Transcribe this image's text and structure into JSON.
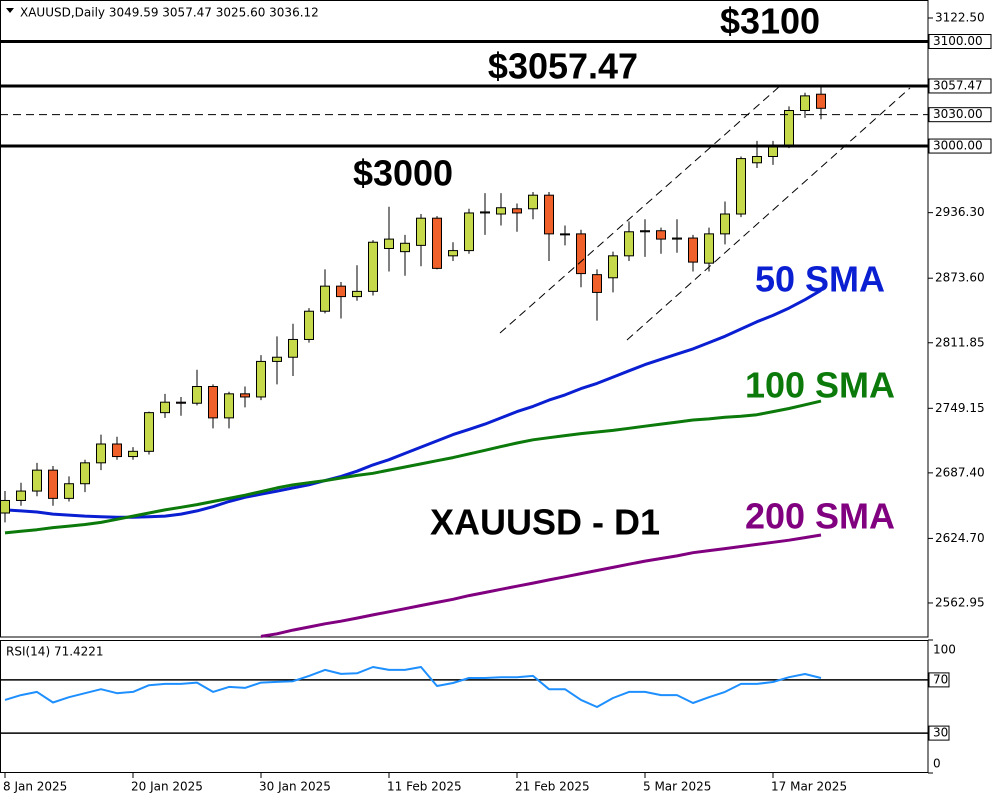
{
  "chart_data": [
    {
      "type": "candlestick",
      "subtitle": "XAUUSD,Daily  3049.59 3057.47 3025.60 3036.12",
      "title": "XAUUSD - D1",
      "categories": [
        "8 Jan 2025",
        null,
        null,
        null,
        null,
        null,
        null,
        null,
        "20 Jan 2025",
        null,
        null,
        null,
        null,
        null,
        null,
        null,
        "30 Jan 2025",
        null,
        null,
        null,
        null,
        null,
        null,
        null,
        "11 Feb 2025",
        null,
        null,
        null,
        null,
        null,
        null,
        null,
        "21 Feb 2025",
        null,
        null,
        null,
        null,
        null,
        null,
        null,
        "5 Mar 2025",
        null,
        null,
        null,
        null,
        null,
        null,
        null,
        "17 Mar 2025",
        null,
        null,
        null
      ],
      "open": [
        2649,
        2661,
        2670,
        2690,
        2663,
        2677,
        2697,
        2715,
        2703,
        2708,
        2745,
        2755,
        2754,
        2770,
        2740,
        2763,
        2760,
        2794,
        2798,
        2815,
        2842,
        2866,
        2856,
        2861,
        2902,
        2899,
        2905,
        2931,
        2895,
        2900,
        2936,
        2935,
        2940,
        2940,
        2953,
        2916,
        2916,
        2877,
        2874,
        2895,
        2918,
        2919,
        2911,
        2912,
        2888,
        2916,
        2935,
        2984,
        2990,
        3001,
        3034,
        3049.59
      ],
      "high": [
        2670,
        2678,
        2697,
        2694,
        2684,
        2700,
        2724,
        2722,
        2712,
        2746,
        2763,
        2760,
        2786,
        2772,
        2765,
        2770,
        2800,
        2818,
        2830,
        2845,
        2882,
        2870,
        2886,
        2910,
        2942,
        2915,
        2935,
        2933,
        2908,
        2940,
        2955,
        2955,
        2945,
        2956,
        2956,
        2924,
        2920,
        2882,
        2899,
        2928,
        2930,
        2922,
        2930,
        2915,
        2922,
        2947,
        2990,
        3005,
        3005,
        3038,
        3051,
        3057.47
      ],
      "low": [
        2640,
        2656,
        2665,
        2656,
        2660,
        2669,
        2690,
        2700,
        2700,
        2705,
        2740,
        2742,
        2752,
        2730,
        2730,
        2750,
        2757,
        2772,
        2780,
        2812,
        2840,
        2835,
        2852,
        2857,
        2880,
        2876,
        2885,
        2882,
        2890,
        2897,
        2915,
        2924,
        2918,
        2930,
        2890,
        2905,
        2865,
        2833,
        2860,
        2890,
        2894,
        2897,
        2898,
        2880,
        2880,
        2906,
        2932,
        2979,
        2982,
        2998,
        3027,
        3025.6
      ],
      "close": [
        2661,
        2670,
        2690,
        2663,
        2677,
        2697,
        2715,
        2703,
        2708,
        2745,
        2755,
        2754,
        2770,
        2740,
        2763,
        2760,
        2794,
        2798,
        2815,
        2842,
        2866,
        2856,
        2861,
        2908,
        2911,
        2907,
        2931,
        2883,
        2900,
        2936,
        2937,
        2941,
        2936,
        2953,
        2916,
        2916,
        2878,
        2860,
        2895,
        2918,
        2919,
        2911,
        2912,
        2889,
        2916,
        2935,
        2988,
        2990,
        3001,
        3034,
        3048,
        3036.12
      ],
      "up_color": "#c5d94a",
      "down_color": "#f0602a",
      "series": [
        {
          "name": "50 SMA",
          "color": "#0a1ed2",
          "values": [
            2652,
            2651,
            2650,
            2648,
            2647,
            2646,
            2645.5,
            2645,
            2645,
            2645.5,
            2646,
            2648,
            2651,
            2655,
            2660,
            2664,
            2667,
            2670,
            2673,
            2676,
            2680,
            2684,
            2689,
            2695,
            2700,
            2706,
            2712,
            2718,
            2724,
            2729,
            2734,
            2740,
            2746,
            2751,
            2757,
            2762,
            2768,
            2773,
            2779,
            2785,
            2791,
            2796,
            2801,
            2806,
            2812,
            2818,
            2825,
            2832,
            2838,
            2845,
            2853,
            2862
          ]
        },
        {
          "name": "100 SMA",
          "color": "#0b7a0b",
          "values": [
            2630,
            2631.5,
            2633,
            2635,
            2636.5,
            2638,
            2640,
            2643,
            2646,
            2649,
            2652,
            2654.5,
            2657,
            2660,
            2663,
            2666,
            2669.5,
            2673,
            2676,
            2678,
            2680,
            2682.5,
            2685,
            2687,
            2690,
            2693,
            2696,
            2699,
            2702,
            2705.5,
            2709,
            2712.5,
            2716,
            2719,
            2721,
            2723,
            2725,
            2726.5,
            2728,
            2730,
            2732,
            2734,
            2736,
            2738,
            2739,
            2740.5,
            2741.5,
            2743,
            2746,
            2749,
            2752.5,
            2756
          ]
        },
        {
          "name": "200 SMA",
          "color": "#800080",
          "values": [
            null,
            null,
            null,
            null,
            null,
            null,
            null,
            null,
            null,
            null,
            null,
            null,
            null,
            null,
            null,
            null,
            2531,
            2533.5,
            2537,
            2540,
            2543,
            2545.5,
            2548.5,
            2551.5,
            2554.5,
            2557.5,
            2560.5,
            2563.5,
            2566.5,
            2570,
            2573,
            2576,
            2579,
            2582,
            2585,
            2588,
            2591,
            2594,
            2597,
            2600,
            2603,
            2605.5,
            2608,
            2611,
            2613,
            2615,
            2617,
            2619,
            2621,
            2623,
            2625.5,
            2628
          ]
        }
      ],
      "ylim": [
        2530.4,
        3139.7
      ],
      "yticks": [
        {
          "value": 3122.5,
          "label": "3122.50"
        },
        {
          "value": 2936.3,
          "label": "2936.30"
        },
        {
          "value": 2873.6,
          "label": "2873.60"
        },
        {
          "value": 2811.85,
          "label": "2811.85"
        },
        {
          "value": 2749.15,
          "label": "2749.15"
        },
        {
          "value": 2687.4,
          "label": "2687.40"
        },
        {
          "value": 2624.7,
          "label": "2624.70"
        },
        {
          "value": 2562.95,
          "label": "2562.95"
        }
      ],
      "hlines": [
        {
          "value": 3100,
          "label": "3100.00",
          "style": "solid"
        },
        {
          "value": 3057.47,
          "label": "3057.47",
          "style": "solid"
        },
        {
          "value": 3030,
          "label": "3030.00",
          "style": "dashed"
        },
        {
          "value": 3000,
          "label": "3000.00",
          "style": "solid"
        }
      ],
      "annotations": [
        "$3100",
        "$3057.47",
        "$3000"
      ]
    },
    {
      "type": "line",
      "title": "RSI(14) 71.4221",
      "series": [
        {
          "color": "#1e8fff",
          "values": [
            55,
            58.6,
            61,
            53,
            57,
            60,
            63,
            60,
            61,
            66,
            67,
            67,
            68,
            61,
            64.7,
            64,
            68,
            68.5,
            69,
            73,
            77.5,
            74.5,
            75,
            79.7,
            77.5,
            77.5,
            79.7,
            65.4,
            67.7,
            71.4,
            71.4,
            72,
            72,
            73,
            63,
            63,
            55,
            49.6,
            56.4,
            61,
            61,
            58.6,
            58.6,
            52.6,
            57,
            61,
            67,
            67,
            68.4,
            72,
            74.4,
            71.4221
          ]
        }
      ],
      "ylim": [
        0,
        100
      ],
      "yticks": [
        100,
        70,
        30,
        0
      ],
      "levels": [
        70,
        30
      ]
    }
  ]
}
